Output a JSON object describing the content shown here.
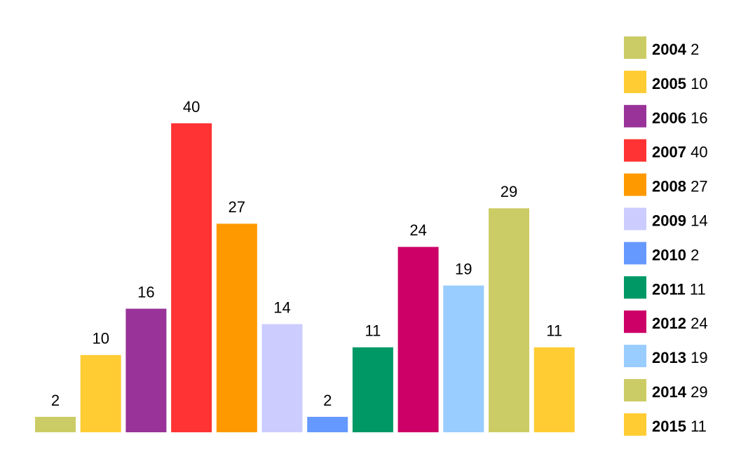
{
  "chart_data": {
    "type": "bar",
    "categories": [
      "2004",
      "2005",
      "2006",
      "2007",
      "2008",
      "2009",
      "2010",
      "2011",
      "2012",
      "2013",
      "2014",
      "2015"
    ],
    "values": [
      2,
      10,
      16,
      40,
      27,
      14,
      2,
      11,
      24,
      19,
      29,
      11
    ],
    "colors": [
      "#cccc66",
      "#ffcc33",
      "#993399",
      "#ff3333",
      "#ff9900",
      "#ccccff",
      "#6699ff",
      "#009966",
      "#cc0066",
      "#99ccff",
      "#cccc66",
      "#ffcc33"
    ],
    "ylim": [
      0,
      40
    ],
    "legend": "right"
  }
}
